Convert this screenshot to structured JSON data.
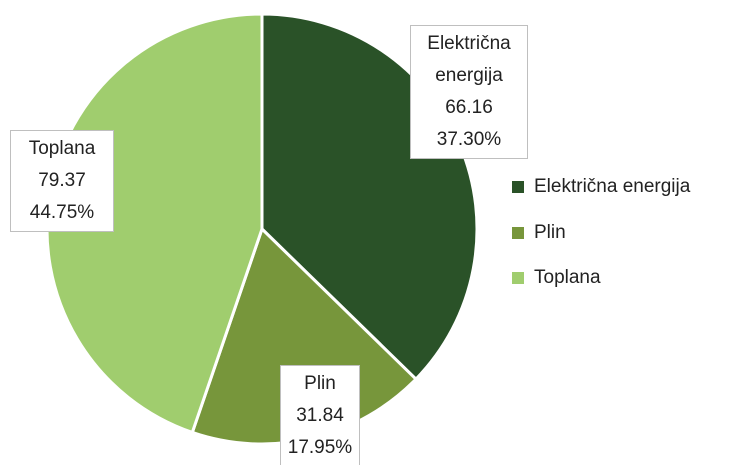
{
  "chart_data": {
    "type": "pie",
    "categories": [
      "Električna energija",
      "Plin",
      "Toplana"
    ],
    "values": [
      66.16,
      31.84,
      79.37
    ],
    "percent_labels": [
      "37.30%",
      "17.95%",
      "44.75%"
    ],
    "colors": [
      "#2a5228",
      "#77963b",
      "#a0cd6e"
    ],
    "legend": "right"
  }
}
